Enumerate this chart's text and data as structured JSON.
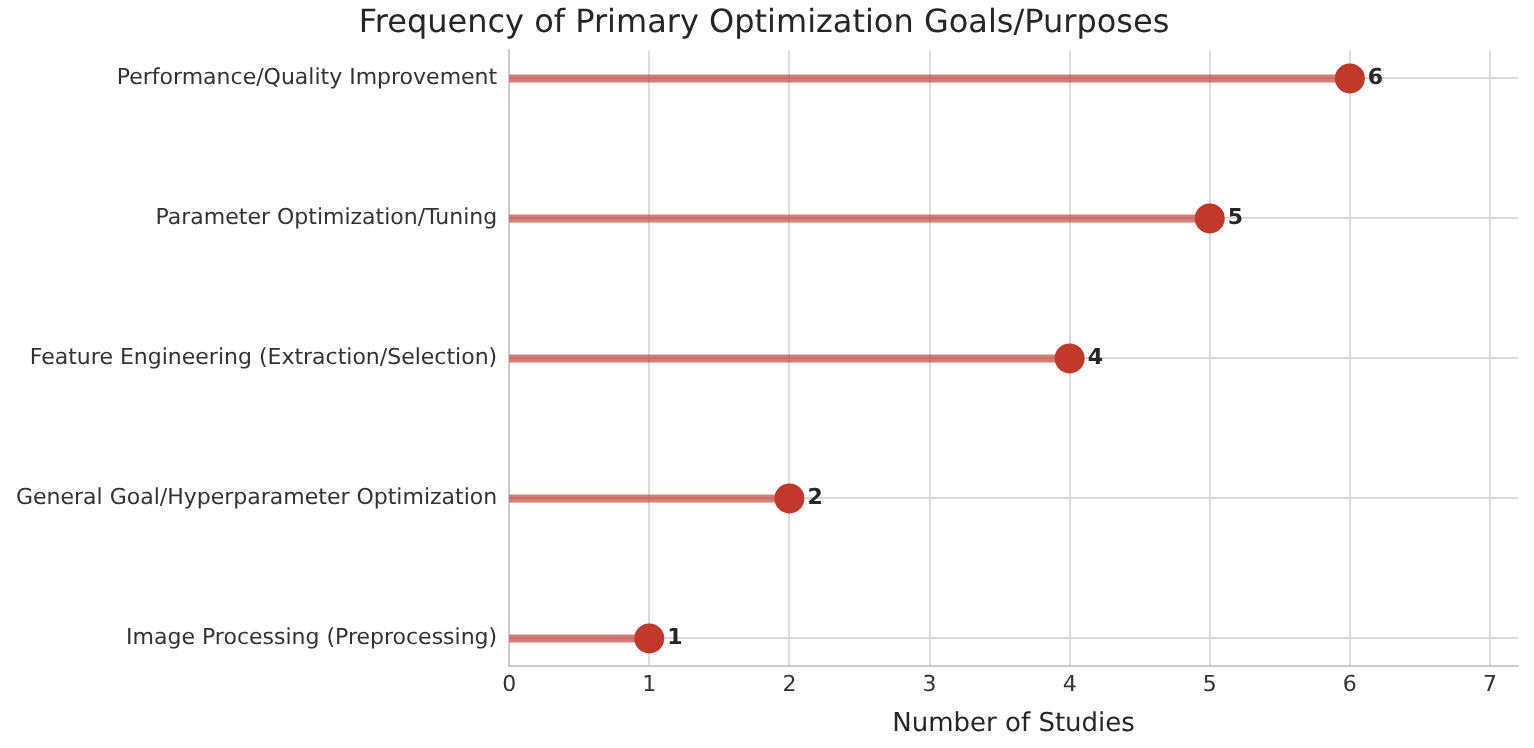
{
  "chart_data": {
    "type": "lollipop",
    "orientation": "horizontal",
    "title": "Frequency of Primary Optimization Goals/Purposes",
    "xlabel": "Number of Studies",
    "categories": [
      "Performance/Quality Improvement",
      "Parameter Optimization/Tuning",
      "Feature Engineering (Extraction/Selection)",
      "General Goal/Hyperparameter Optimization",
      "Image Processing (Preprocessing)"
    ],
    "series": [
      {
        "color": "#c0392b",
        "values": [
          6,
          5,
          4,
          2,
          1
        ]
      }
    ],
    "xlim": [
      0,
      7.2
    ],
    "xticks": [
      0,
      1,
      2,
      3,
      4,
      5,
      6,
      7
    ],
    "grid": true,
    "data_labels": true,
    "legend": false,
    "marker": "circle"
  }
}
